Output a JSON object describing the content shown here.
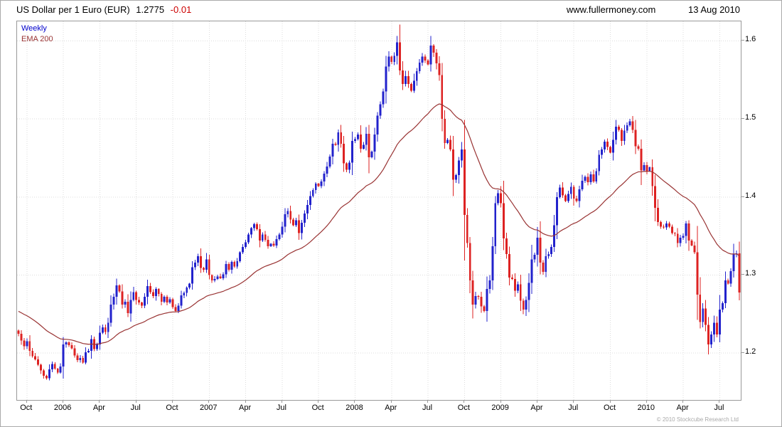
{
  "header": {
    "instrument": "US Dollar per 1 Euro (EUR)",
    "last": "1.2775",
    "change": "-0.01",
    "site": "www.fullermoney.com",
    "date": "13 Aug 2010"
  },
  "legend": {
    "series1": "Weekly",
    "series2": "EMA 200"
  },
  "footer": {
    "copyright": "© 2010 Stockcube Research Ltd"
  },
  "colors": {
    "up": "#2222cc",
    "down": "#dd2222",
    "ema": "#993333",
    "grid": "#dcdcdc",
    "frame": "#999999",
    "change_negative": "#cc0000",
    "legend_weekly": "#0000cc",
    "axis_text": "#000000",
    "copyright": "#aaaaaa"
  },
  "chart_data": {
    "type": "candlestick",
    "title": "US Dollar per 1 Euro (EUR)",
    "timeframe": "Weekly",
    "overlay": "EMA 200",
    "last_price": 1.2775,
    "change": -0.01,
    "ylim": [
      1.14,
      1.625
    ],
    "grid": true,
    "y_ticks": [
      {
        "label": "1.6",
        "value": 1.6
      },
      {
        "label": "1.5",
        "value": 1.5
      },
      {
        "label": "1.4",
        "value": 1.4
      },
      {
        "label": "1.3",
        "value": 1.3
      },
      {
        "label": "1.2",
        "value": 1.2
      }
    ],
    "x_ticks": [
      {
        "label": "Oct",
        "week": 3
      },
      {
        "label": "2006",
        "week": 16
      },
      {
        "label": "Apr",
        "week": 29
      },
      {
        "label": "Jul",
        "week": 42
      },
      {
        "label": "Oct",
        "week": 55
      },
      {
        "label": "2007",
        "week": 68
      },
      {
        "label": "Apr",
        "week": 81
      },
      {
        "label": "Jul",
        "week": 94
      },
      {
        "label": "Oct",
        "week": 107
      },
      {
        "label": "2008",
        "week": 120
      },
      {
        "label": "Apr",
        "week": 133
      },
      {
        "label": "Jul",
        "week": 146
      },
      {
        "label": "Oct",
        "week": 159
      },
      {
        "label": "2009",
        "week": 172
      },
      {
        "label": "Apr",
        "week": 185
      },
      {
        "label": "Jul",
        "week": 198
      },
      {
        "label": "Oct",
        "week": 211
      },
      {
        "label": "2010",
        "week": 224
      },
      {
        "label": "Apr",
        "week": 237
      },
      {
        "label": "Jul",
        "week": 250
      }
    ],
    "ema": {
      "label": "EMA 200",
      "span_weeks": 40,
      "seed": 1.255
    },
    "weekly_closes": [
      1.225,
      1.216,
      1.209,
      1.215,
      1.203,
      1.196,
      1.192,
      1.185,
      1.178,
      1.171,
      1.168,
      1.179,
      1.186,
      1.18,
      1.175,
      1.183,
      1.211,
      1.214,
      1.21,
      1.206,
      1.197,
      1.191,
      1.194,
      1.188,
      1.201,
      1.203,
      1.218,
      1.205,
      1.211,
      1.226,
      1.233,
      1.227,
      1.239,
      1.262,
      1.272,
      1.287,
      1.279,
      1.262,
      1.266,
      1.251,
      1.268,
      1.278,
      1.268,
      1.265,
      1.261,
      1.272,
      1.286,
      1.278,
      1.273,
      1.282,
      1.276,
      1.266,
      1.272,
      1.265,
      1.269,
      1.259,
      1.254,
      1.261,
      1.274,
      1.277,
      1.284,
      1.289,
      1.31,
      1.316,
      1.324,
      1.309,
      1.307,
      1.32,
      1.3,
      1.293,
      1.295,
      1.298,
      1.296,
      1.301,
      1.314,
      1.307,
      1.317,
      1.311,
      1.318,
      1.329,
      1.336,
      1.342,
      1.352,
      1.36,
      1.365,
      1.359,
      1.344,
      1.352,
      1.345,
      1.337,
      1.34,
      1.338,
      1.346,
      1.352,
      1.362,
      1.378,
      1.382,
      1.371,
      1.364,
      1.37,
      1.354,
      1.367,
      1.379,
      1.39,
      1.401,
      1.409,
      1.417,
      1.414,
      1.42,
      1.43,
      1.439,
      1.452,
      1.468,
      1.467,
      1.483,
      1.468,
      1.443,
      1.435,
      1.444,
      1.472,
      1.474,
      1.48,
      1.462,
      1.467,
      1.481,
      1.451,
      1.458,
      1.48,
      1.504,
      1.519,
      1.535,
      1.567,
      1.58,
      1.573,
      1.581,
      1.598,
      1.562,
      1.545,
      1.555,
      1.545,
      1.536,
      1.549,
      1.561,
      1.572,
      1.58,
      1.575,
      1.57,
      1.594,
      1.585,
      1.571,
      1.556,
      1.5,
      1.469,
      1.473,
      1.461,
      1.422,
      1.428,
      1.447,
      1.461,
      1.377,
      1.341,
      1.293,
      1.262,
      1.273,
      1.272,
      1.26,
      1.254,
      1.282,
      1.293,
      1.337,
      1.392,
      1.405,
      1.392,
      1.347,
      1.327,
      1.297,
      1.295,
      1.28,
      1.288,
      1.267,
      1.256,
      1.268,
      1.29,
      1.32,
      1.326,
      1.348,
      1.316,
      1.304,
      1.324,
      1.327,
      1.336,
      1.364,
      1.4,
      1.412,
      1.402,
      1.395,
      1.404,
      1.413,
      1.398,
      1.395,
      1.41,
      1.421,
      1.426,
      1.419,
      1.429,
      1.42,
      1.433,
      1.454,
      1.461,
      1.471,
      1.464,
      1.457,
      1.473,
      1.49,
      1.486,
      1.472,
      1.485,
      1.492,
      1.497,
      1.486,
      1.465,
      1.462,
      1.434,
      1.441,
      1.433,
      1.438,
      1.414,
      1.386,
      1.368,
      1.362,
      1.361,
      1.366,
      1.362,
      1.354,
      1.353,
      1.341,
      1.348,
      1.35,
      1.366,
      1.344,
      1.338,
      1.329,
      1.275,
      1.24,
      1.257,
      1.236,
      1.211,
      1.224,
      1.239,
      1.224,
      1.256,
      1.264,
      1.293,
      1.289,
      1.305,
      1.327,
      1.328,
      1.2775
    ]
  }
}
